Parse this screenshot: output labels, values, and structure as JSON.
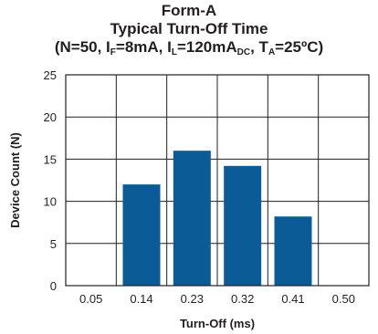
{
  "title": {
    "line1": "Form-A",
    "line2": "Typical Turn-Off Time",
    "line3": {
      "open": "(N=50, I",
      "sub_f": "F",
      "mid1": "=8mA, I",
      "sub_l": "L",
      "mid2": "=120mA",
      "sub_dc": "DC",
      "mid3": ", T",
      "sub_a": "A",
      "close": "=25ºC)"
    }
  },
  "colors": {
    "bar": "#0b5c96",
    "grid": "#231f20",
    "text": "#231f20"
  },
  "chart_data": {
    "type": "bar",
    "categories": [
      "0.05",
      "0.14",
      "0.23",
      "0.32",
      "0.41",
      "0.50"
    ],
    "values": [
      0,
      12,
      16,
      14.2,
      8.2,
      0
    ],
    "title": "Form-A Typical Turn-Off Time",
    "xlabel": "Turn-Off (ms)",
    "ylabel": "Device Count (N)",
    "ylim": [
      0,
      25
    ],
    "yticks": [
      0,
      5,
      10,
      15,
      20,
      25
    ],
    "grid": true
  }
}
